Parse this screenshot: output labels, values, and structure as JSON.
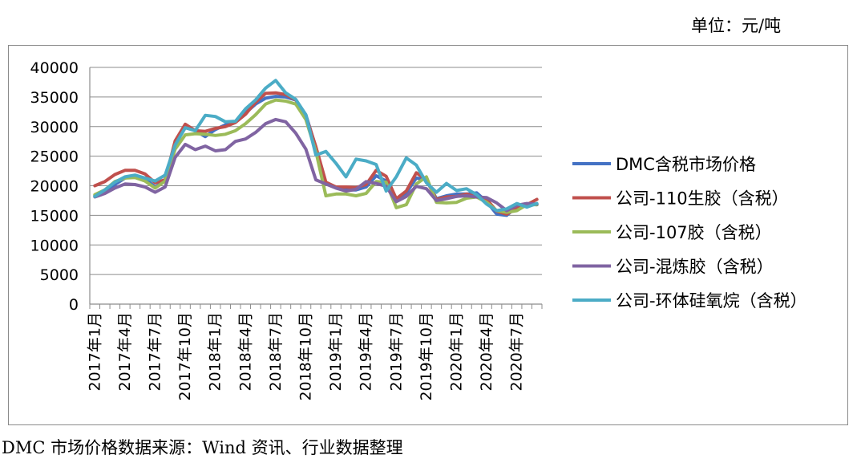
{
  "header": {
    "unit": "单位：元/吨"
  },
  "footer": {
    "source": "DMC 市场价格数据来源：Wind 资讯、行业数据整理"
  },
  "chart_data": {
    "type": "line",
    "ylim": [
      0,
      40000
    ],
    "yticks": [
      0,
      5000,
      10000,
      15000,
      20000,
      25000,
      30000,
      35000,
      40000
    ],
    "grid": true,
    "legend_position": "right",
    "xtick_labels": [
      "2017年1月",
      "2017年4月",
      "2017年7月",
      "2017年10月",
      "2018年1月",
      "2018年4月",
      "2018年7月",
      "2018年10月",
      "2019年1月",
      "2019年4月",
      "2019年7月",
      "2019年10月",
      "2020年1月",
      "2020年4月",
      "2020年7月"
    ],
    "x": [
      "2017-01",
      "2017-02",
      "2017-03",
      "2017-04",
      "2017-05",
      "2017-06",
      "2017-07",
      "2017-08",
      "2017-09",
      "2017-10",
      "2017-11",
      "2017-12",
      "2018-01",
      "2018-02",
      "2018-03",
      "2018-04",
      "2018-05",
      "2018-06",
      "2018-07",
      "2018-08",
      "2018-09",
      "2018-10",
      "2018-11",
      "2018-12",
      "2019-01",
      "2019-02",
      "2019-03",
      "2019-04",
      "2019-05",
      "2019-06",
      "2019-07",
      "2019-08",
      "2019-09",
      "2019-10",
      "2019-11",
      "2019-12",
      "2020-01",
      "2020-02",
      "2020-03",
      "2020-04",
      "2020-05",
      "2020-06",
      "2020-07",
      "2020-08",
      "2020-09"
    ],
    "series": [
      {
        "name": "DMC含税市场价格",
        "color": "#4472C4",
        "values": [
          18300,
          19000,
          20200,
          21300,
          21700,
          21200,
          19800,
          20800,
          27000,
          30000,
          29300,
          28300,
          29500,
          30300,
          30800,
          32300,
          33800,
          34800,
          35100,
          35000,
          34500,
          32000,
          26500,
          20300,
          19800,
          19300,
          19300,
          19800,
          21700,
          20800,
          17800,
          18800,
          21300,
          21000,
          17800,
          18300,
          18600,
          18600,
          18800,
          17300,
          15200,
          15000,
          16500,
          16900,
          16800
        ]
      },
      {
        "name": "公司-110生胶（含税）",
        "color": "#C0504D",
        "values": [
          20000,
          20700,
          21900,
          22600,
          22600,
          22000,
          20500,
          21000,
          27600,
          30400,
          29300,
          29200,
          29700,
          30000,
          30700,
          32100,
          34100,
          35600,
          35700,
          35400,
          34500,
          31800,
          26600,
          20600,
          19800,
          19800,
          19700,
          20200,
          22600,
          21600,
          17800,
          19100,
          22200,
          21000,
          17700,
          18100,
          18200,
          18600,
          18100,
          17700,
          15700,
          15200,
          16200,
          16800,
          17700
        ]
      },
      {
        "name": "公司-107胶（含税）",
        "color": "#9BBB59",
        "values": [
          18500,
          19300,
          20700,
          21300,
          21400,
          20800,
          19600,
          20800,
          26200,
          28600,
          28800,
          28700,
          28500,
          28700,
          29300,
          30500,
          32000,
          33800,
          34500,
          34300,
          33800,
          31200,
          25800,
          18300,
          18600,
          18600,
          18300,
          18700,
          20700,
          20600,
          16300,
          16800,
          20300,
          21500,
          17200,
          17100,
          17200,
          17900,
          18100,
          17200,
          15800,
          15500,
          15800,
          16800,
          16800
        ]
      },
      {
        "name": "公司-混炼胶（含税）",
        "color": "#8064A2",
        "values": [
          18100,
          18700,
          19600,
          20300,
          20200,
          19800,
          18900,
          19800,
          24800,
          27000,
          26100,
          26700,
          25900,
          26100,
          27500,
          27900,
          29000,
          30500,
          31200,
          30800,
          28900,
          26200,
          21000,
          20300,
          19600,
          19100,
          19400,
          20700,
          20400,
          19900,
          17300,
          18200,
          19900,
          19500,
          17500,
          17800,
          18200,
          18300,
          18100,
          18000,
          17100,
          15800,
          16700,
          17000,
          16900
        ]
      },
      {
        "name": "公司-环体硅氧烷（含税）",
        "color": "#4BACC6",
        "values": [
          18200,
          19300,
          20600,
          21500,
          21800,
          21300,
          20800,
          21800,
          26900,
          29800,
          29300,
          31900,
          31700,
          30800,
          30900,
          33000,
          34500,
          36500,
          37800,
          35700,
          34600,
          32000,
          25200,
          25800,
          23800,
          21500,
          24500,
          24200,
          23600,
          19100,
          21500,
          24700,
          23500,
          20500,
          18900,
          20400,
          19200,
          19500,
          18500,
          16900,
          15800,
          16100,
          17000,
          16400,
          17000
        ]
      }
    ]
  }
}
